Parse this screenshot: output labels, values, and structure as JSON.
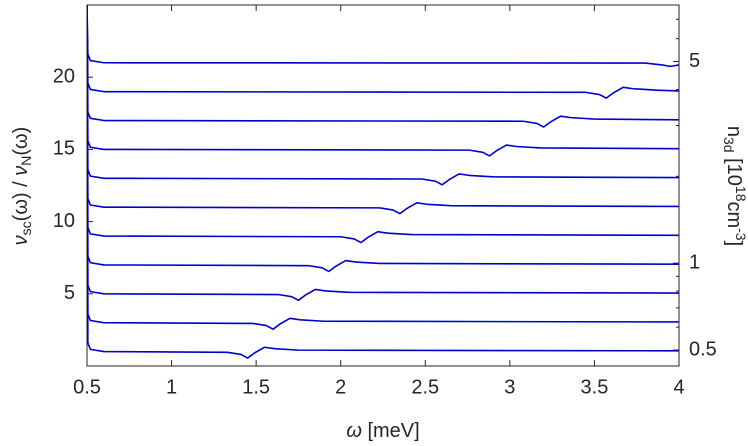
{
  "chart_data": {
    "type": "line",
    "xlabel": [
      "ω",
      " [meV]"
    ],
    "ylabel": [
      "ν",
      "sc",
      "(ω) / ",
      "ν",
      "N",
      "(ω)"
    ],
    "y2label": [
      "n",
      "3d",
      " [10",
      "18",
      "cm",
      "-3",
      "]"
    ],
    "xlim": [
      0.5,
      4
    ],
    "xticks": [
      0.5,
      1,
      1.5,
      2,
      2.5,
      3,
      3.5,
      4
    ],
    "ylim": [
      0,
      25
    ],
    "yticks": [
      5,
      10,
      15,
      20
    ],
    "y2lim": [
      0.44,
      7.85
    ],
    "y2scale": "log",
    "y2ticks": [
      0.5,
      1,
      5
    ],
    "y2minor_ticks": [
      0.6,
      0.7,
      0.8,
      0.9,
      2,
      3,
      4,
      6,
      7
    ],
    "color": "#0000cc",
    "series": [
      {
        "x": [
          0.5,
          0.505,
          0.52,
          0.6,
          1.33,
          1.41,
          1.45,
          1.49,
          1.55,
          1.61,
          1.75,
          4
        ],
        "values": [
          25,
          1.6,
          1.15,
          1,
          0.95,
          0.8,
          0.55,
          0.9,
          1.3,
          1.2,
          1.1,
          1.05
        ]
      },
      {
        "x": [
          0.5,
          0.505,
          0.52,
          0.6,
          1.48,
          1.56,
          1.6,
          1.64,
          1.7,
          1.76,
          1.9,
          4
        ],
        "values": [
          25,
          3.6,
          3.15,
          3,
          2.95,
          2.8,
          2.55,
          2.9,
          3.3,
          3.2,
          3.1,
          3.05
        ]
      },
      {
        "x": [
          0.5,
          0.505,
          0.52,
          0.6,
          1.63,
          1.71,
          1.75,
          1.79,
          1.85,
          1.91,
          2.05,
          4
        ],
        "values": [
          25,
          5.6,
          5.15,
          5,
          4.95,
          4.8,
          4.55,
          4.9,
          5.3,
          5.2,
          5.1,
          5.05
        ]
      },
      {
        "x": [
          0.5,
          0.505,
          0.52,
          0.6,
          1.81,
          1.89,
          1.93,
          1.97,
          2.03,
          2.09,
          2.23,
          4
        ],
        "values": [
          25,
          7.6,
          7.15,
          7,
          6.95,
          6.8,
          6.55,
          6.9,
          7.3,
          7.2,
          7.1,
          7.05
        ]
      },
      {
        "x": [
          0.5,
          0.505,
          0.52,
          0.6,
          2.0,
          2.08,
          2.12,
          2.16,
          2.22,
          2.28,
          2.42,
          4
        ],
        "values": [
          25,
          9.6,
          9.15,
          9,
          8.95,
          8.8,
          8.55,
          8.9,
          9.3,
          9.2,
          9.1,
          9.05
        ]
      },
      {
        "x": [
          0.5,
          0.505,
          0.52,
          0.6,
          2.23,
          2.31,
          2.35,
          2.39,
          2.45,
          2.51,
          2.65,
          4
        ],
        "values": [
          25,
          11.6,
          11.15,
          11,
          10.95,
          10.8,
          10.55,
          10.9,
          11.3,
          11.2,
          11.1,
          11.05
        ]
      },
      {
        "x": [
          0.5,
          0.505,
          0.52,
          0.6,
          2.48,
          2.56,
          2.6,
          2.64,
          2.7,
          2.76,
          2.9,
          4
        ],
        "values": [
          25,
          13.6,
          13.15,
          13,
          12.95,
          12.8,
          12.55,
          12.9,
          13.3,
          13.2,
          13.1,
          13.05
        ]
      },
      {
        "x": [
          0.5,
          0.505,
          0.52,
          0.6,
          2.76,
          2.84,
          2.88,
          2.92,
          2.98,
          3.04,
          3.18,
          4
        ],
        "values": [
          25,
          15.6,
          15.15,
          15,
          14.95,
          14.8,
          14.55,
          14.9,
          15.3,
          15.2,
          15.1,
          15.05
        ]
      },
      {
        "x": [
          0.5,
          0.505,
          0.52,
          0.6,
          3.08,
          3.16,
          3.2,
          3.24,
          3.3,
          3.36,
          3.5,
          4
        ],
        "values": [
          25,
          17.6,
          17.15,
          17,
          16.95,
          16.8,
          16.55,
          16.9,
          17.3,
          17.2,
          17.1,
          17.05
        ]
      },
      {
        "x": [
          0.5,
          0.505,
          0.52,
          0.6,
          3.45,
          3.53,
          3.57,
          3.61,
          3.67,
          3.73,
          3.87,
          4
        ],
        "values": [
          25,
          19.6,
          19.15,
          19,
          18.95,
          18.8,
          18.55,
          18.9,
          19.3,
          19.2,
          19.1,
          19.05
        ]
      },
      {
        "x": [
          0.5,
          0.505,
          0.52,
          0.6,
          3.8,
          3.9,
          3.95,
          4
        ],
        "values": [
          25,
          21.6,
          21.15,
          21,
          20.98,
          20.85,
          20.75,
          20.85
        ]
      }
    ]
  }
}
